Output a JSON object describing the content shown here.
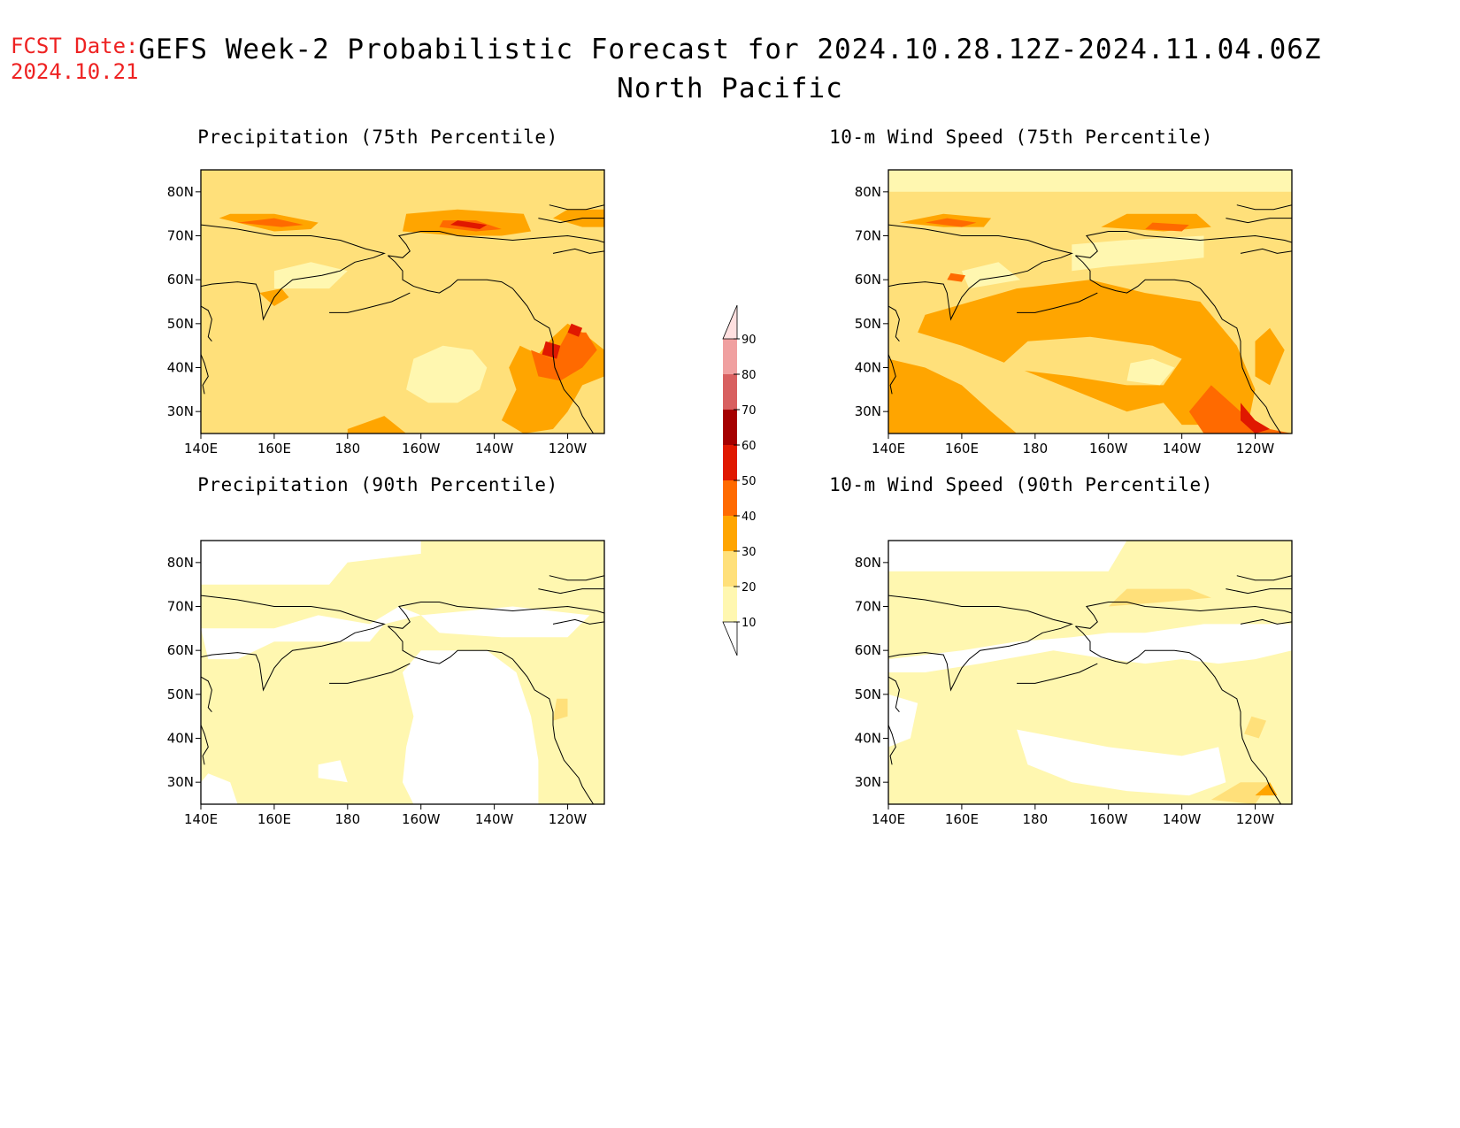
{
  "forecast_date": {
    "label": "FCST Date:",
    "date": "2024.10.21"
  },
  "title": {
    "line1": "GEFS Week-2 Probabilistic Forecast for 2024.10.28.12Z-2024.11.04.06Z",
    "line2": "North Pacific"
  },
  "panels": [
    {
      "id": "precip-75",
      "title": "Precipitation (75th Percentile)"
    },
    {
      "id": "wind-75",
      "title": "10-m Wind Speed (75th Percentile)"
    },
    {
      "id": "precip-90",
      "title": "Precipitation (90th Percentile)"
    },
    {
      "id": "wind-90",
      "title": "10-m Wind Speed (90th Percentile)"
    }
  ],
  "axes": {
    "lat_labels": [
      "80N",
      "70N",
      "60N",
      "50N",
      "40N",
      "30N"
    ],
    "lon_labels": [
      "140E",
      "160E",
      "180",
      "160W",
      "140W",
      "120W"
    ],
    "lat_range": [
      25,
      85
    ],
    "lon_range_east": [
      140,
      250
    ]
  },
  "colorbar": {
    "levels": [
      10,
      20,
      30,
      40,
      50,
      60,
      70,
      80,
      90
    ],
    "level_labels": [
      "10",
      "20",
      "30",
      "40",
      "50",
      "60",
      "70",
      "80",
      "90"
    ],
    "colors": [
      "#fff7b0",
      "#ffe07a",
      "#ffa500",
      "#ff6a00",
      "#e01800",
      "#a50000",
      "#d86060",
      "#f0a0a0",
      "#ffe0e0"
    ]
  }
}
